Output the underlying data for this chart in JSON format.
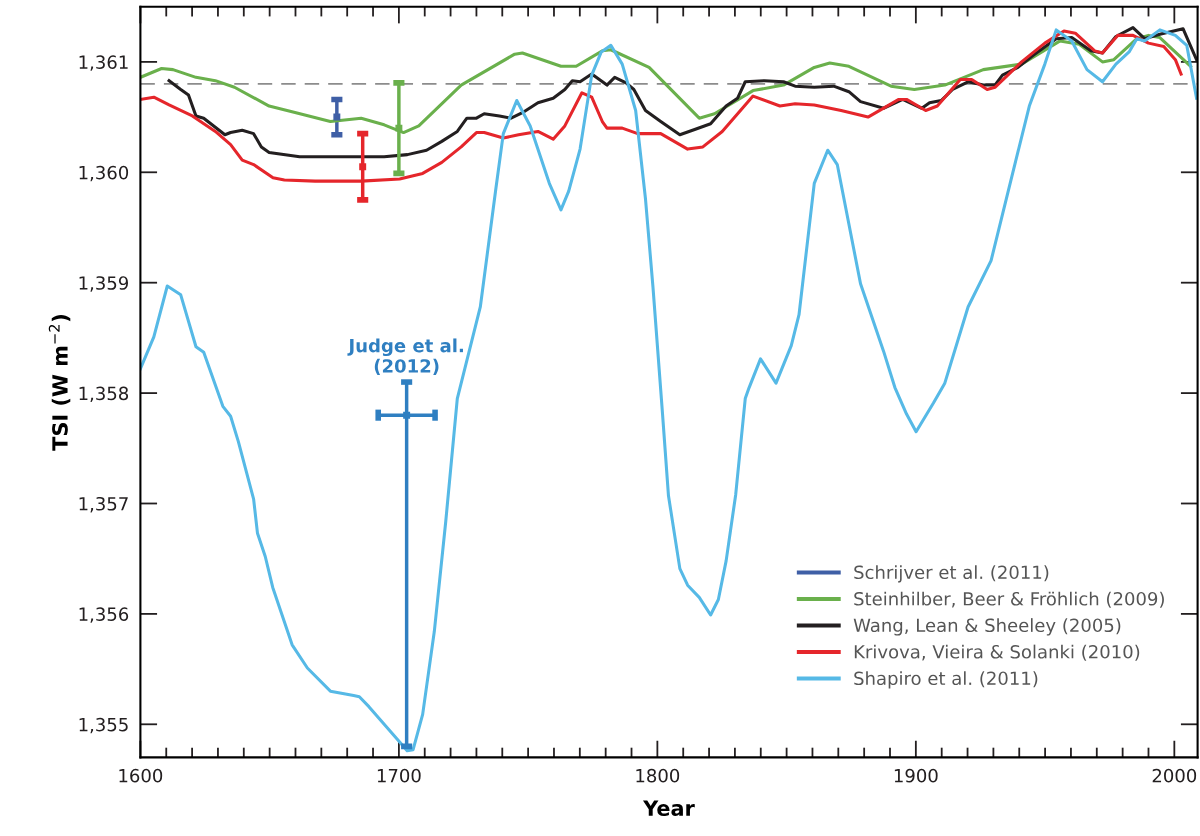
{
  "chart_data": {
    "type": "line",
    "xlabel": "Year",
    "ylabel": "TSI (W m$^{−2}$)",
    "xlim": [
      1600,
      2009
    ],
    "ylim": [
      1354.7,
      1361.5
    ],
    "xticks": [
      1600,
      {
        "value": 1610,
        "label": null
      },
      {
        "value": 1620,
        "label": null
      },
      {
        "value": 1630,
        "label": null
      },
      {
        "value": 1640,
        "label": null
      },
      {
        "value": 1650,
        "label": null
      },
      {
        "value": 1660,
        "label": null
      },
      {
        "value": 1670,
        "label": null
      },
      {
        "value": 1680,
        "label": null
      },
      {
        "value": 1690,
        "label": null
      },
      1700,
      {
        "value": 1710,
        "label": null
      },
      {
        "value": 1720,
        "label": null
      },
      {
        "value": 1730,
        "label": null
      },
      {
        "value": 1740,
        "label": null
      },
      {
        "value": 1750,
        "label": null
      },
      {
        "value": 1760,
        "label": null
      },
      {
        "value": 1770,
        "label": null
      },
      {
        "value": 1780,
        "label": null
      },
      {
        "value": 1790,
        "label": null
      },
      1800,
      {
        "value": 1810,
        "label": null
      },
      {
        "value": 1820,
        "label": null
      },
      {
        "value": 1830,
        "label": null
      },
      {
        "value": 1840,
        "label": null
      },
      {
        "value": 1850,
        "label": null
      },
      {
        "value": 1860,
        "label": null
      },
      {
        "value": 1870,
        "label": null
      },
      {
        "value": 1880,
        "label": null
      },
      {
        "value": 1890,
        "label": null
      },
      1900,
      {
        "value": 1910,
        "label": null
      },
      {
        "value": 1920,
        "label": null
      },
      {
        "value": 1930,
        "label": null
      },
      {
        "value": 1940,
        "label": null
      },
      {
        "value": 1950,
        "label": null
      },
      {
        "value": 1960,
        "label": null
      },
      {
        "value": 1970,
        "label": null
      },
      {
        "value": 1980,
        "label": null
      },
      {
        "value": 1990,
        "label": null
      },
      2000
    ],
    "yticks": [
      {
        "value": 1355,
        "label": "1,355"
      },
      {
        "value": 1356,
        "label": "1,356"
      },
      {
        "value": 1357,
        "label": "1,357"
      },
      {
        "value": 1358,
        "label": "1,358"
      },
      {
        "value": 1359,
        "label": "1,359"
      },
      {
        "value": 1360,
        "label": "1,360"
      },
      {
        "value": 1361,
        "label": "1,361"
      }
    ],
    "ref_lines": [
      {
        "axis": "y",
        "value": 1360.8,
        "color": "#8c8c8c",
        "line_style": "dashed"
      }
    ],
    "legend": "bottom right",
    "grid": false,
    "marker": "none",
    "line_style": "solid",
    "annotations": [
      {
        "text": "Judge et al.\n(2012)",
        "x": 1703,
        "y": 1357.8
      }
    ],
    "series": [
      {
        "name": "Schrijver et al. (2011)",
        "type": "scatter",
        "marker": "square",
        "color": "#3f5fa6",
        "x": [
          1676
        ],
        "values": [
          1360.5
        ],
        "errors": [
          0.16
        ]
      },
      {
        "name": "Steinhilber, Beer & Fröhlich (2009)",
        "color": "#6ab04c",
        "x": [
          1600.0,
          1608.2,
          1612.6,
          1621.5,
          1629.0,
          1636.4,
          1649.8,
          1660.2,
          1673.5,
          1685.4,
          1694.3,
          1701.8,
          1707.7,
          1724.1,
          1744.8,
          1747.8,
          1762.7,
          1768.6,
          1778.7,
          1782.0,
          1796.8,
          1816.2,
          1822.1,
          1837.0,
          1848.8,
          1860.7,
          1866.7,
          1874.1,
          1890.4,
          1899.4,
          1911.2,
          1926.1,
          1940.9,
          1955.8,
          1963.2,
          1972.2,
          1976.6,
          1985.5,
          1990.0,
          1994.4,
          2006.3
        ],
        "values": [
          1360.86,
          1360.94,
          1360.93,
          1360.86,
          1360.83,
          1360.77,
          1360.6,
          1360.54,
          1360.46,
          1360.49,
          1360.43,
          1360.36,
          1360.42,
          1360.79,
          1361.07,
          1361.08,
          1360.96,
          1360.96,
          1361.1,
          1361.11,
          1360.95,
          1360.49,
          1360.53,
          1360.74,
          1360.79,
          1360.95,
          1360.99,
          1360.96,
          1360.78,
          1360.75,
          1360.79,
          1360.93,
          1360.98,
          1361.19,
          1361.16,
          1361.0,
          1361.02,
          1361.21,
          1361.24,
          1361.22,
          1360.96
        ]
      },
      {
        "name": "Wang, Lean & Sheeley (2005)",
        "color": "#231f20",
        "x": [
          1611.1,
          1615.6,
          1618.6,
          1621.5,
          1624.5,
          1632.7,
          1634.9,
          1639.4,
          1643.8,
          1646.8,
          1649.8,
          1661.6,
          1679.5,
          1694.3,
          1703.3,
          1710.7,
          1716.6,
          1722.6,
          1726.3,
          1730.0,
          1733.0,
          1738.9,
          1743.4,
          1747.8,
          1753.8,
          1759.7,
          1764.2,
          1767.1,
          1770.1,
          1774.6,
          1780.5,
          1783.5,
          1787.9,
          1790.9,
          1795.4,
          1801.3,
          1808.7,
          1814.7,
          1820.6,
          1826.6,
          1831.0,
          1834.0,
          1841.4,
          1848.8,
          1853.3,
          1860.7,
          1868.2,
          1874.1,
          1878.6,
          1887.5,
          1894.9,
          1902.3,
          1905.3,
          1909.8,
          1914.2,
          1920.2,
          1926.1,
          1930.6,
          1933.5,
          1939.5,
          1945.4,
          1954.3,
          1960.3,
          1967.7,
          1972.2,
          1977.4,
          1984.0,
          1988.5,
          1994.4,
          2003.4,
          2008.6
        ],
        "values": [
          1360.83,
          1360.75,
          1360.7,
          1360.51,
          1360.49,
          1360.34,
          1360.36,
          1360.38,
          1360.35,
          1360.23,
          1360.18,
          1360.14,
          1360.14,
          1360.14,
          1360.16,
          1360.2,
          1360.28,
          1360.37,
          1360.49,
          1360.49,
          1360.53,
          1360.51,
          1360.49,
          1360.54,
          1360.63,
          1360.67,
          1360.75,
          1360.83,
          1360.82,
          1360.89,
          1360.79,
          1360.86,
          1360.81,
          1360.75,
          1360.56,
          1360.46,
          1360.34,
          1360.39,
          1360.44,
          1360.6,
          1360.67,
          1360.82,
          1360.83,
          1360.82,
          1360.78,
          1360.77,
          1360.78,
          1360.73,
          1360.64,
          1360.58,
          1360.66,
          1360.58,
          1360.63,
          1360.65,
          1360.75,
          1360.82,
          1360.79,
          1360.79,
          1360.88,
          1360.95,
          1361.06,
          1361.21,
          1361.22,
          1361.1,
          1361.08,
          1361.23,
          1361.31,
          1361.21,
          1361.25,
          1361.3,
          1361.02
        ]
      },
      {
        "name": "Krivova, Vieira & Solanki (2010)",
        "color": "#e5262b",
        "x": [
          1600.0,
          1605.2,
          1611.1,
          1620.1,
          1629.0,
          1634.9,
          1639.4,
          1643.8,
          1651.3,
          1655.7,
          1667.6,
          1685.4,
          1700.3,
          1709.2,
          1716.6,
          1724.1,
          1730.0,
          1733.0,
          1740.4,
          1746.3,
          1753.8,
          1759.7,
          1764.2,
          1770.8,
          1774.6,
          1778.7,
          1780.5,
          1786.4,
          1792.4,
          1801.3,
          1811.7,
          1817.6,
          1825.1,
          1837.0,
          1847.4,
          1853.3,
          1860.7,
          1871.1,
          1881.5,
          1893.4,
          1896.4,
          1903.8,
          1908.3,
          1917.2,
          1921.6,
          1927.6,
          1930.6,
          1940.9,
          1949.9,
          1957.3,
          1961.7,
          1969.2,
          1972.2,
          1978.1,
          1984.0,
          1990.0,
          1995.9,
          2000.4,
          2002.6
        ],
        "values": [
          1360.66,
          1360.68,
          1360.61,
          1360.51,
          1360.37,
          1360.25,
          1360.11,
          1360.07,
          1359.95,
          1359.93,
          1359.92,
          1359.92,
          1359.94,
          1359.99,
          1360.09,
          1360.23,
          1360.36,
          1360.36,
          1360.31,
          1360.34,
          1360.37,
          1360.3,
          1360.42,
          1360.72,
          1360.68,
          1360.46,
          1360.4,
          1360.4,
          1360.35,
          1360.35,
          1360.21,
          1360.23,
          1360.37,
          1360.69,
          1360.6,
          1360.62,
          1360.61,
          1360.56,
          1360.5,
          1360.66,
          1360.66,
          1360.56,
          1360.6,
          1360.84,
          1360.84,
          1360.75,
          1360.77,
          1361.0,
          1361.17,
          1361.28,
          1361.26,
          1361.1,
          1361.08,
          1361.24,
          1361.24,
          1361.17,
          1361.14,
          1361.02,
          1360.89
        ]
      },
      {
        "name": "Shapiro et al. (2011)",
        "color": "#56b9e6",
        "x": [
          1600.0,
          1605.2,
          1610.4,
          1615.6,
          1621.5,
          1624.5,
          1631.9,
          1634.9,
          1637.9,
          1643.8,
          1645.3,
          1648.3,
          1651.2,
          1658.7,
          1664.6,
          1673.5,
          1682.5,
          1684.7,
          1688.4,
          1700.3,
          1703.2,
          1705.5,
          1709.2,
          1713.7,
          1718.1,
          1722.6,
          1731.5,
          1737.4,
          1740.4,
          1745.6,
          1750.8,
          1758.2,
          1762.7,
          1765.7,
          1770.1,
          1774.6,
          1778.3,
          1782.0,
          1786.4,
          1791.6,
          1795.4,
          1798.3,
          1802.0,
          1804.3,
          1808.7,
          1811.7,
          1816.2,
          1820.6,
          1823.6,
          1826.6,
          1830.3,
          1834.0,
          1835.5,
          1839.9,
          1845.9,
          1851.8,
          1854.8,
          1860.7,
          1865.9,
          1869.6,
          1878.6,
          1887.5,
          1891.9,
          1896.4,
          1900.1,
          1906.8,
          1911.2,
          1920.2,
          1929.1,
          1935.0,
          1943.9,
          1949.9,
          1954.3,
          1960.3,
          1966.2,
          1972.2,
          1977.4,
          1982.5,
          1985.5,
          1988.5,
          1994.4,
          2000.4,
          2004.8,
          2008.6
        ],
        "values": [
          1358.22,
          1358.51,
          1358.97,
          1358.89,
          1358.42,
          1358.37,
          1357.88,
          1357.79,
          1357.56,
          1357.04,
          1356.73,
          1356.52,
          1356.24,
          1355.72,
          1355.51,
          1355.3,
          1355.26,
          1355.25,
          1355.16,
          1354.84,
          1354.76,
          1354.77,
          1355.09,
          1355.84,
          1356.83,
          1357.95,
          1358.78,
          1359.83,
          1360.35,
          1360.65,
          1360.42,
          1359.9,
          1359.66,
          1359.83,
          1360.21,
          1360.88,
          1361.09,
          1361.15,
          1360.98,
          1360.56,
          1359.76,
          1358.96,
          1357.81,
          1357.07,
          1356.41,
          1356.26,
          1356.15,
          1355.99,
          1356.13,
          1356.48,
          1357.08,
          1357.95,
          1358.05,
          1358.31,
          1358.09,
          1358.43,
          1358.71,
          1359.9,
          1360.2,
          1360.07,
          1358.99,
          1358.38,
          1358.05,
          1357.81,
          1357.65,
          1357.91,
          1358.09,
          1358.78,
          1359.2,
          1359.76,
          1360.6,
          1360.98,
          1361.29,
          1361.19,
          1360.93,
          1360.82,
          1360.98,
          1361.09,
          1361.21,
          1361.19,
          1361.29,
          1361.24,
          1361.15,
          1360.67
        ]
      },
      {
        "type": "scatter",
        "marker": "square",
        "color": "#e5262b",
        "x": [
          1686
        ],
        "values": [
          1360.05
        ],
        "errors": [
          0.3
        ]
      },
      {
        "type": "scatter",
        "marker": "square",
        "color": "#6ab04c",
        "x": [
          1700
        ],
        "values": [
          1360.4
        ],
        "errors": [
          0.41
        ]
      },
      {
        "type": "scatter",
        "marker": "square",
        "color": "#2f7fc1",
        "x": [
          1703
        ],
        "values": [
          1357.8
        ],
        "errors": [
          [
            1354.8,
            1358.1
          ]
        ],
        "xerrors": [
          11
        ]
      }
    ]
  }
}
